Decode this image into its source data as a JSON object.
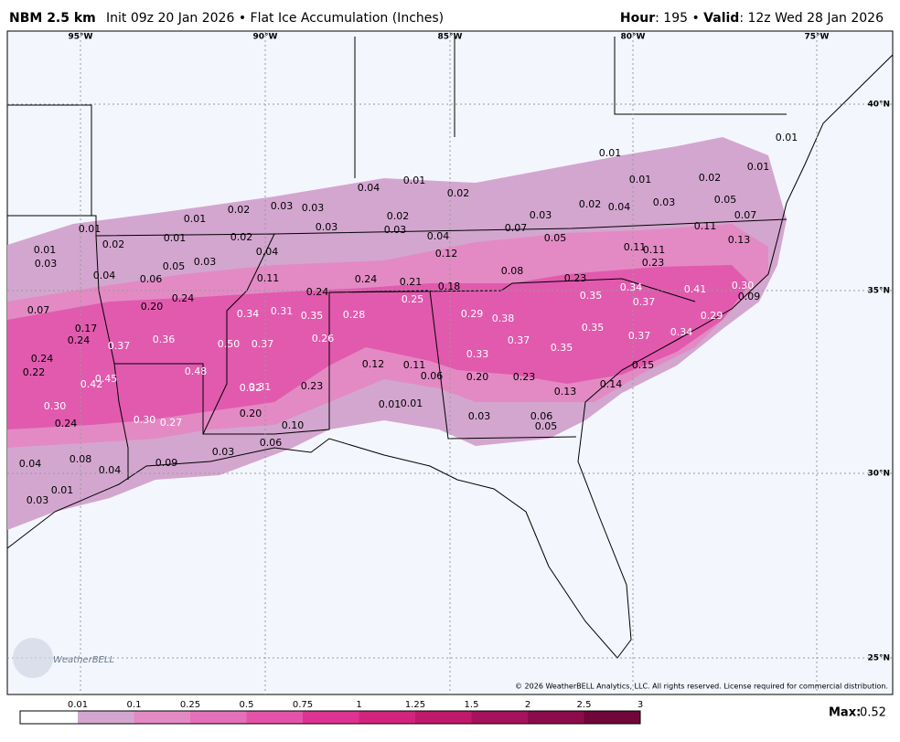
{
  "header": {
    "model": "NBM 2.5 km",
    "product": "Init 09z 20 Jan 2026 • Flat Ice Accumulation (Inches)",
    "right": [
      {
        "text": "Hour",
        "bold": true
      },
      {
        "text": ": 195 • "
      },
      {
        "text": "Valid",
        "bold": true
      },
      {
        "text": ": 12z Wed 28 Jan 2026"
      }
    ]
  },
  "map": {
    "lon_labels": [
      "95°W",
      "90°W",
      "85°W",
      "80°W",
      "75°W"
    ],
    "lat_labels": [
      "40°N",
      "35°N",
      "30°N",
      "25°N"
    ],
    "point_labels": [
      "0.01",
      "0.01",
      "0.02",
      "0.01",
      "0.01",
      "0.04",
      "0.01",
      "0.02",
      "0.02",
      "0.04",
      "0.03",
      "0.05",
      "0.07",
      "0.01",
      "0.02",
      "0.03",
      "0.03",
      "0.02",
      "0.03",
      "0.03",
      "0.03",
      "0.01",
      "0.07",
      "0.04",
      "0.05",
      "0.11",
      "0.02",
      "0.01",
      "0.02",
      "0.01",
      "0.03",
      "0.04",
      "0.12",
      "0.11",
      "0.11",
      "0.13",
      "0.05",
      "0.03",
      "0.23",
      "0.04",
      "0.06",
      "0.11",
      "0.24",
      "0.21",
      "0.18",
      "0.08",
      "0.23",
      "0.24",
      "0.24",
      "0.25",
      "0.35",
      "0.34",
      "0.37",
      "0.41",
      "0.30",
      "0.09",
      "0.07",
      "0.20",
      "0.34",
      "0.31",
      "0.35",
      "0.28",
      "0.29",
      "0.38",
      "0.29",
      "0.17",
      "0.24",
      "0.37",
      "0.36",
      "0.50",
      "0.37",
      "0.26",
      "0.37",
      "0.35",
      "0.37",
      "0.34",
      "0.24",
      "0.22",
      "0.33",
      "0.35",
      "0.48",
      "0.12",
      "0.11",
      "0.15",
      "0.45",
      "0.42",
      "0.32",
      "0.31",
      "0.23",
      "0.06",
      "0.20",
      "0.23",
      "0.14",
      "0.30",
      "0.01",
      "0.01",
      "0.13",
      "0.20",
      "0.30",
      "0.27",
      "0.24",
      "0.10",
      "0.03",
      "0.06",
      "0.05",
      "0.06",
      "0.03",
      "0.08",
      "0.04",
      "0.04",
      "0.09",
      "0.01",
      "0.03"
    ],
    "copyright": "© 2026 WeatherBELL Analytics, LLC. All rights reserved. License required for commercial distribution.",
    "logo": "WeatherBELL"
  },
  "legend": {
    "ticks": [
      "0.01",
      "0.1",
      "0.25",
      "0.5",
      "0.75",
      "1",
      "1.25",
      "1.5",
      "2",
      "2.5",
      "3"
    ],
    "colors": [
      "#ffffff",
      "#d3a6d0",
      "#e38ac4",
      "#e470ba",
      "#e453aa",
      "#de3393",
      "#d2237f",
      "#bf196c",
      "#a6125c",
      "#8c0c4b",
      "#70063a"
    ],
    "max_label": "Max:",
    "max": "0.52"
  }
}
